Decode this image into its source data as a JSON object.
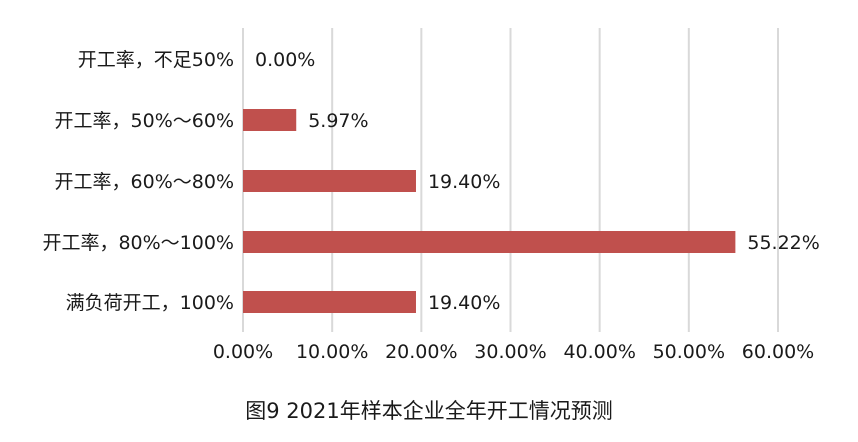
{
  "chart_data": {
    "type": "bar",
    "orientation": "horizontal",
    "categories": [
      "开工率，不足50%",
      "开工率，50%～60%",
      "开工率，60%～80%",
      "开工率，80%～100%",
      "满负荷开工，100%"
    ],
    "values": [
      0.0,
      5.97,
      19.4,
      55.22,
      19.4
    ],
    "data_labels": [
      "0.00%",
      "5.97%",
      "19.40%",
      "55.22%",
      "19.40%"
    ],
    "x_ticks": [
      "0.00%",
      "10.00%",
      "20.00%",
      "30.00%",
      "40.00%",
      "50.00%",
      "60.00%"
    ],
    "xlim": [
      0,
      60
    ],
    "grid": "vertical",
    "legend": "none",
    "bar_color": "#c0504d",
    "grid_color": "#d9d9d9",
    "caption": "图9 2021年样本企业全年开工情况预测"
  }
}
